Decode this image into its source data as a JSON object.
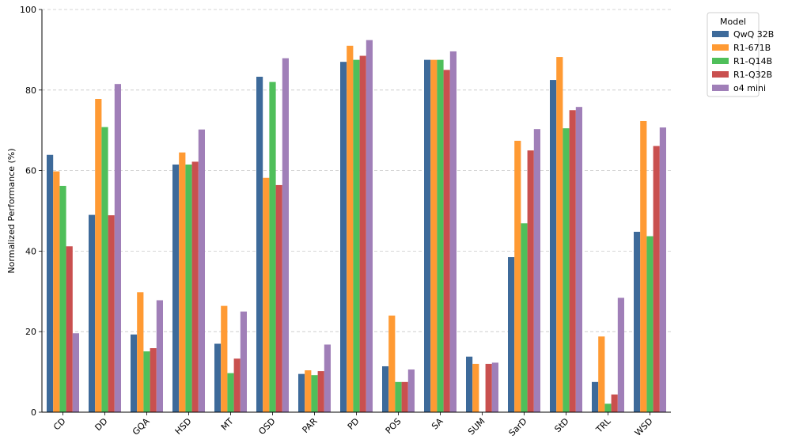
{
  "chart_data": {
    "type": "bar",
    "title": "",
    "xlabel": "",
    "ylabel": "Normalized Performance (%)",
    "ylim": [
      0,
      100
    ],
    "yticks": [
      0,
      20,
      40,
      60,
      80,
      100
    ],
    "grid": "y-dashed",
    "legend": {
      "title": "Model",
      "placement": "outside-top-right"
    },
    "categories": [
      "CD",
      "DD",
      "GQA",
      "HSD",
      "MT",
      "OSD",
      "PAR",
      "PD",
      "POS",
      "SA",
      "SUM",
      "SarD",
      "StD",
      "TRL",
      "WSD"
    ],
    "series": [
      {
        "name": "QwQ 32B",
        "color": "#3d6a9a",
        "values": [
          63.9,
          49.0,
          19.3,
          61.5,
          17.0,
          83.3,
          9.5,
          87.0,
          11.4,
          87.5,
          13.8,
          38.5,
          82.5,
          7.5,
          44.8
        ]
      },
      {
        "name": "R1-671B",
        "color": "#ff9a33",
        "values": [
          59.8,
          77.8,
          29.8,
          64.5,
          26.4,
          58.2,
          10.4,
          91.0,
          24.0,
          87.5,
          12.0,
          67.4,
          88.2,
          18.8,
          72.3
        ]
      },
      {
        "name": "R1-Q14B",
        "color": "#4fbf5a",
        "values": [
          56.2,
          70.8,
          15.1,
          61.5,
          9.7,
          82.0,
          9.2,
          87.5,
          7.5,
          87.5,
          0.0,
          46.9,
          70.5,
          2.1,
          43.7
        ]
      },
      {
        "name": "R1-Q32B",
        "color": "#c9504f",
        "values": [
          41.2,
          48.9,
          15.9,
          62.2,
          13.3,
          56.4,
          10.2,
          88.5,
          7.5,
          85.0,
          12.0,
          65.0,
          75.0,
          4.4,
          66.1
        ]
      },
      {
        "name": "o4 mini",
        "color": "#a07fb8",
        "values": [
          19.6,
          81.5,
          27.8,
          70.2,
          25.0,
          87.9,
          16.8,
          92.4,
          10.6,
          89.6,
          12.3,
          70.3,
          75.8,
          28.4,
          70.7
        ]
      }
    ]
  }
}
